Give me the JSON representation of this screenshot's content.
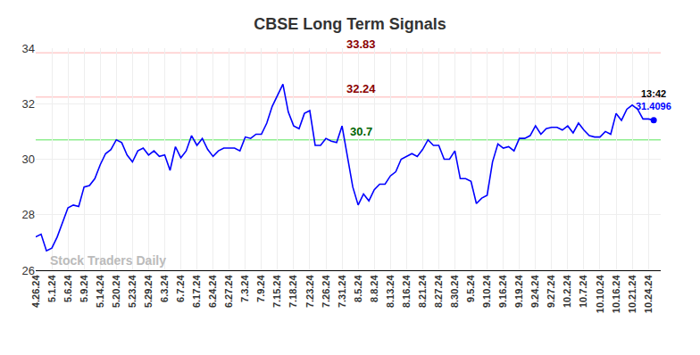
{
  "chart_data": {
    "type": "line",
    "title": "CBSE Long Term Signals",
    "watermark": "Stock Traders Daily",
    "time_label": "13:42",
    "color": "#0000ff",
    "grid": true,
    "ylim": [
      26,
      34
    ],
    "yticks": [
      26,
      28,
      30,
      32,
      34
    ],
    "reference_lines": [
      {
        "value": 33.83,
        "color": "#ffcccc",
        "label_color": "#8b0000"
      },
      {
        "value": 32.24,
        "color": "#ffcccc",
        "label_color": "#8b0000"
      },
      {
        "value": 30.7,
        "color": "#90ee90",
        "label_color": "#006400"
      }
    ],
    "categories": [
      "4.26.24",
      null,
      null,
      "5.1.24",
      null,
      null,
      "5.6.24",
      null,
      null,
      "5.9.24",
      null,
      null,
      "5.14.24",
      null,
      null,
      "5.20.24",
      null,
      null,
      "5.23.24",
      null,
      null,
      "5.29.24",
      null,
      null,
      "6.3.24",
      null,
      null,
      "6.7.24",
      null,
      null,
      "6.17.24",
      null,
      null,
      "6.24.24",
      null,
      null,
      "6.27.24",
      null,
      null,
      "7.3.24",
      null,
      null,
      "7.9.24",
      null,
      null,
      "7.15.24",
      null,
      null,
      "7.18.24",
      null,
      null,
      "7.23.24",
      null,
      null,
      "7.26.24",
      null,
      null,
      "7.31.24",
      null,
      null,
      "8.5.24",
      null,
      null,
      "8.8.24",
      null,
      null,
      "8.13.24",
      null,
      null,
      "8.16.24",
      null,
      null,
      "8.21.24",
      null,
      null,
      "8.27.24",
      null,
      null,
      "8.30.24",
      null,
      null,
      "9.5.24",
      null,
      null,
      "9.10.24",
      null,
      null,
      "9.16.24",
      null,
      null,
      "9.19.24",
      null,
      null,
      "9.24.24",
      null,
      null,
      "9.27.24",
      null,
      null,
      "10.2.24",
      null,
      null,
      "10.7.24",
      null,
      null,
      "10.10.24",
      null,
      null,
      "10.16.24",
      null,
      null,
      "10.21.24",
      null,
      null,
      "10.24.24",
      null
    ],
    "values": [
      27.2,
      27.3,
      26.7,
      26.8,
      27.2,
      27.7,
      28.25,
      28.35,
      28.3,
      29.0,
      29.05,
      29.3,
      29.8,
      30.2,
      30.35,
      30.7,
      30.6,
      30.15,
      29.9,
      30.3,
      30.4,
      30.15,
      30.3,
      30.1,
      30.15,
      29.6,
      30.45,
      30.05,
      30.3,
      30.85,
      30.5,
      30.75,
      30.35,
      30.1,
      30.3,
      30.4,
      30.4,
      30.4,
      30.3,
      30.8,
      30.75,
      30.9,
      30.9,
      31.3,
      31.9,
      32.3,
      32.7,
      31.7,
      31.2,
      31.1,
      31.65,
      31.75,
      30.5,
      30.5,
      30.75,
      30.65,
      30.6,
      31.2,
      30.1,
      29.0,
      28.35,
      28.75,
      28.5,
      28.9,
      29.1,
      29.1,
      29.4,
      29.55,
      30.0,
      30.1,
      30.2,
      30.1,
      30.35,
      30.7,
      30.5,
      30.5,
      30.0,
      30.0,
      30.3,
      29.3,
      29.3,
      29.2,
      28.4,
      28.6,
      28.7,
      29.9,
      30.55,
      30.4,
      30.45,
      30.3,
      30.75,
      30.75,
      30.85,
      31.2,
      30.9,
      31.1,
      31.15,
      31.15,
      31.05,
      31.2,
      30.95,
      31.3,
      31.05,
      30.85,
      30.8,
      30.8,
      31.0,
      30.9,
      31.65,
      31.4,
      31.8,
      31.95,
      31.8,
      31.45,
      31.45,
      31.4096
    ]
  }
}
